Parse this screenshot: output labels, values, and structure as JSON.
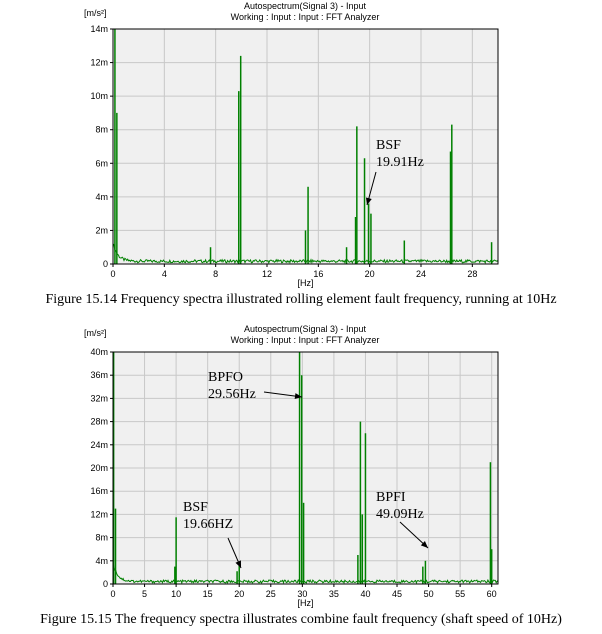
{
  "chart_data": [
    {
      "type": "line",
      "title": "Autospectrum(Signal 3) - Input",
      "subtitle": "Working : Input : Input : FFT Analyzer",
      "xlabel": "[Hz]",
      "ylabel": "[m/s²]",
      "xlim": [
        0,
        30
      ],
      "ylim": [
        0,
        14
      ],
      "grid": true,
      "x_ticks": [
        0,
        4,
        8,
        12,
        16,
        20,
        24,
        28
      ],
      "x_tick_labels": [
        "0",
        "4",
        "8",
        "12",
        "16",
        "20",
        "24",
        "28"
      ],
      "y_ticks": [
        0,
        2,
        4,
        6,
        8,
        10,
        12,
        14
      ],
      "y_tick_labels": [
        "0",
        "2m",
        "4m",
        "6m",
        "8m",
        "10m",
        "12m",
        "14m"
      ],
      "series": [
        {
          "name": "Autospectrum",
          "color": "#008000",
          "baseline": 0.15,
          "x": [
            0.15,
            0.3,
            7.6,
            9.8,
            9.95,
            15.0,
            15.2,
            18.2,
            18.9,
            19.0,
            19.6,
            19.91,
            20.1,
            22.7,
            26.3,
            26.4,
            29.5
          ],
          "values": [
            14.0,
            9.0,
            1.0,
            10.3,
            12.4,
            2.0,
            4.6,
            1.0,
            2.8,
            8.2,
            6.3,
            3.6,
            3.0,
            1.4,
            6.7,
            8.3,
            1.3
          ]
        }
      ],
      "annotations": [
        {
          "lines": [
            "BSF",
            "19.91Hz"
          ],
          "x": 19.91,
          "y": 3.4
        }
      ]
    },
    {
      "type": "line",
      "title": "Autospectrum(Signal 3) - Input",
      "subtitle": "Working : Input : Input : FFT Analyzer",
      "xlabel": "[Hz]",
      "ylabel": "[m/s²]",
      "xlim": [
        0,
        61
      ],
      "ylim": [
        0,
        40
      ],
      "grid": true,
      "x_ticks": [
        0,
        5,
        10,
        15,
        20,
        25,
        30,
        35,
        40,
        45,
        50,
        55,
        60
      ],
      "x_tick_labels": [
        "0",
        "5",
        "10",
        "15",
        "20",
        "25",
        "30",
        "35",
        "40",
        "45",
        "50",
        "55",
        "60"
      ],
      "y_ticks": [
        0,
        4,
        8,
        12,
        16,
        20,
        24,
        28,
        32,
        36,
        40
      ],
      "y_tick_labels": [
        "0",
        "4m",
        "8m",
        "12m",
        "16m",
        "20m",
        "24m",
        "28m",
        "32m",
        "36m",
        "40m"
      ],
      "series": [
        {
          "name": "Autospectrum",
          "color": "#008000",
          "baseline": 0.4,
          "x": [
            0.1,
            0.4,
            9.8,
            10.0,
            19.66,
            20.0,
            29.56,
            29.9,
            30.2,
            38.8,
            39.2,
            39.5,
            40.0,
            49.09,
            49.5,
            59.8,
            60.0
          ],
          "values": [
            40.0,
            13.0,
            3.0,
            11.5,
            2.2,
            3.5,
            42.0,
            36.0,
            14.0,
            5.0,
            28.0,
            12.0,
            26.0,
            3.0,
            4.0,
            21.0,
            6.0
          ]
        }
      ],
      "annotations": [
        {
          "lines": [
            "BPFO",
            "29.56Hz"
          ],
          "x": 29.56,
          "y": 33.0
        },
        {
          "lines": [
            "BSF",
            "19.66HZ"
          ],
          "x": 19.66,
          "y": 2.5
        },
        {
          "lines": [
            "BPFI",
            "49.09Hz"
          ],
          "x": 49.09,
          "y": 5.0
        }
      ]
    }
  ],
  "captions": {
    "figure_15_14": "Figure 15.14 Frequency spectra illustrated rolling element fault frequency, running at 10Hz",
    "figure_15_15": "Figure 15.15 The frequency spectra illustrates combine fault frequency (shaft speed of 10Hz)"
  }
}
